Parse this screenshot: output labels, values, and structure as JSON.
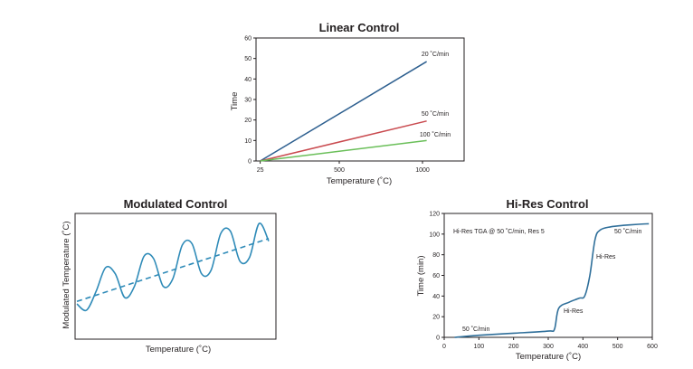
{
  "chart_data": [
    {
      "type": "line",
      "title": "Linear Control",
      "xlabel": "Temperature (˚C)",
      "ylabel": "Time",
      "xlim": [
        0,
        1250
      ],
      "ylim": [
        0,
        60
      ],
      "xticks": [
        "25",
        "500",
        "1000"
      ],
      "xtick_values": [
        25,
        500,
        1000
      ],
      "yticks": [
        0,
        10,
        20,
        30,
        40,
        50,
        60
      ],
      "series": [
        {
          "name": "20 ˚C/min",
          "color": "#2d5f8f",
          "x": [
            25,
            1025
          ],
          "y": [
            0,
            48.5
          ]
        },
        {
          "name": "50 ˚C/min",
          "color": "#c94a4f",
          "x": [
            25,
            1025
          ],
          "y": [
            0,
            19.5
          ]
        },
        {
          "name": "100 ˚C/min",
          "color": "#6abf59",
          "x": [
            25,
            1025
          ],
          "y": [
            0,
            10
          ]
        }
      ]
    },
    {
      "type": "line",
      "title": "Modulated Control",
      "xlabel": "Temperature (˚C)",
      "ylabel": "Modulated Temperature (˚C)",
      "xlim": [
        0,
        1
      ],
      "ylim": [
        0,
        1
      ],
      "series": [
        {
          "name": "",
          "style": "solid",
          "color": "#2f8bb8",
          "x": [
            0.0,
            0.05,
            0.1,
            0.15,
            0.2,
            0.25,
            0.3,
            0.35,
            0.4,
            0.45,
            0.5,
            0.55,
            0.6,
            0.65,
            0.7,
            0.75,
            0.8,
            0.85,
            0.9,
            0.95,
            1.0
          ],
          "y": [
            0.28,
            0.23,
            0.38,
            0.57,
            0.52,
            0.33,
            0.42,
            0.66,
            0.64,
            0.42,
            0.48,
            0.75,
            0.76,
            0.52,
            0.55,
            0.84,
            0.86,
            0.62,
            0.65,
            0.92,
            0.78
          ]
        },
        {
          "name": "",
          "style": "dashed",
          "color": "#2f8bb8",
          "x": [
            0.0,
            1.0
          ],
          "y": [
            0.3,
            0.8
          ]
        }
      ]
    },
    {
      "type": "line",
      "title": "Hi-Res Control",
      "xlabel": "Temperature (˚C)",
      "ylabel": "Time (min)",
      "xlim": [
        0,
        600
      ],
      "ylim": [
        0,
        120
      ],
      "xticks": [
        0,
        100,
        200,
        300,
        400,
        500,
        600
      ],
      "yticks": [
        0,
        20,
        40,
        60,
        80,
        100,
        120
      ],
      "subtitle": "Hi-Res TGA @ 50 ˚C/min, Res 5",
      "series": [
        {
          "name": "",
          "color": "#2f6f9a",
          "x": [
            30,
            100,
            200,
            300,
            318,
            330,
            360,
            390,
            405,
            420,
            435,
            450,
            480,
            520,
            560,
            590
          ],
          "y": [
            0,
            2,
            4,
            6,
            8,
            28,
            34,
            38,
            40,
            60,
            95,
            104,
            107,
            108.5,
            109.5,
            110
          ]
        }
      ],
      "annotations": [
        "50 ˚C/min",
        "Hi-Res",
        "Hi-Res",
        "50 ˚C/min"
      ]
    }
  ]
}
